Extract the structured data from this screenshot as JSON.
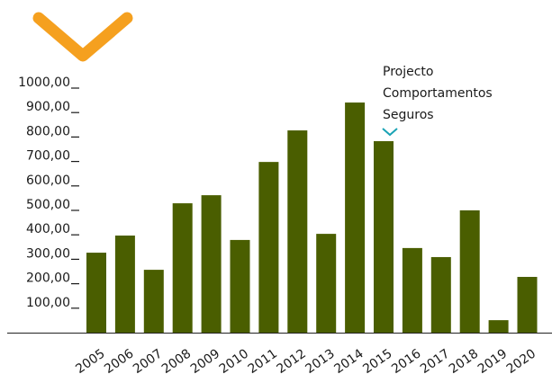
{
  "chart_data": {
    "type": "bar",
    "annotation": [
      "Projecto",
      "Comportamentos",
      "Seguros"
    ],
    "categories": [
      "2005",
      "2006",
      "2007",
      "2008",
      "2009",
      "2010",
      "2011",
      "2012",
      "2013",
      "2014",
      "2015",
      "2016",
      "2017",
      "2018",
      "2019",
      "2020"
    ],
    "values": [
      327,
      397,
      257,
      529,
      562,
      379,
      698,
      827,
      404,
      941,
      783,
      346,
      309,
      500,
      51,
      228
    ],
    "color": "#4a5e00",
    "ylim": [
      0,
      1000
    ],
    "yticks": [
      {
        "value": 100,
        "label": "100,00"
      },
      {
        "value": 200,
        "label": "200,00"
      },
      {
        "value": 300,
        "label": "300,00"
      },
      {
        "value": 400,
        "label": "400,00"
      },
      {
        "value": 500,
        "label": "500,00"
      },
      {
        "value": 600,
        "label": "600,00"
      },
      {
        "value": 700,
        "label": "700,00"
      },
      {
        "value": 800,
        "label": "800,00"
      },
      {
        "value": 900,
        "label": "900,00"
      },
      {
        "value": 1000,
        "label": "1000,00"
      }
    ],
    "grid": false
  }
}
